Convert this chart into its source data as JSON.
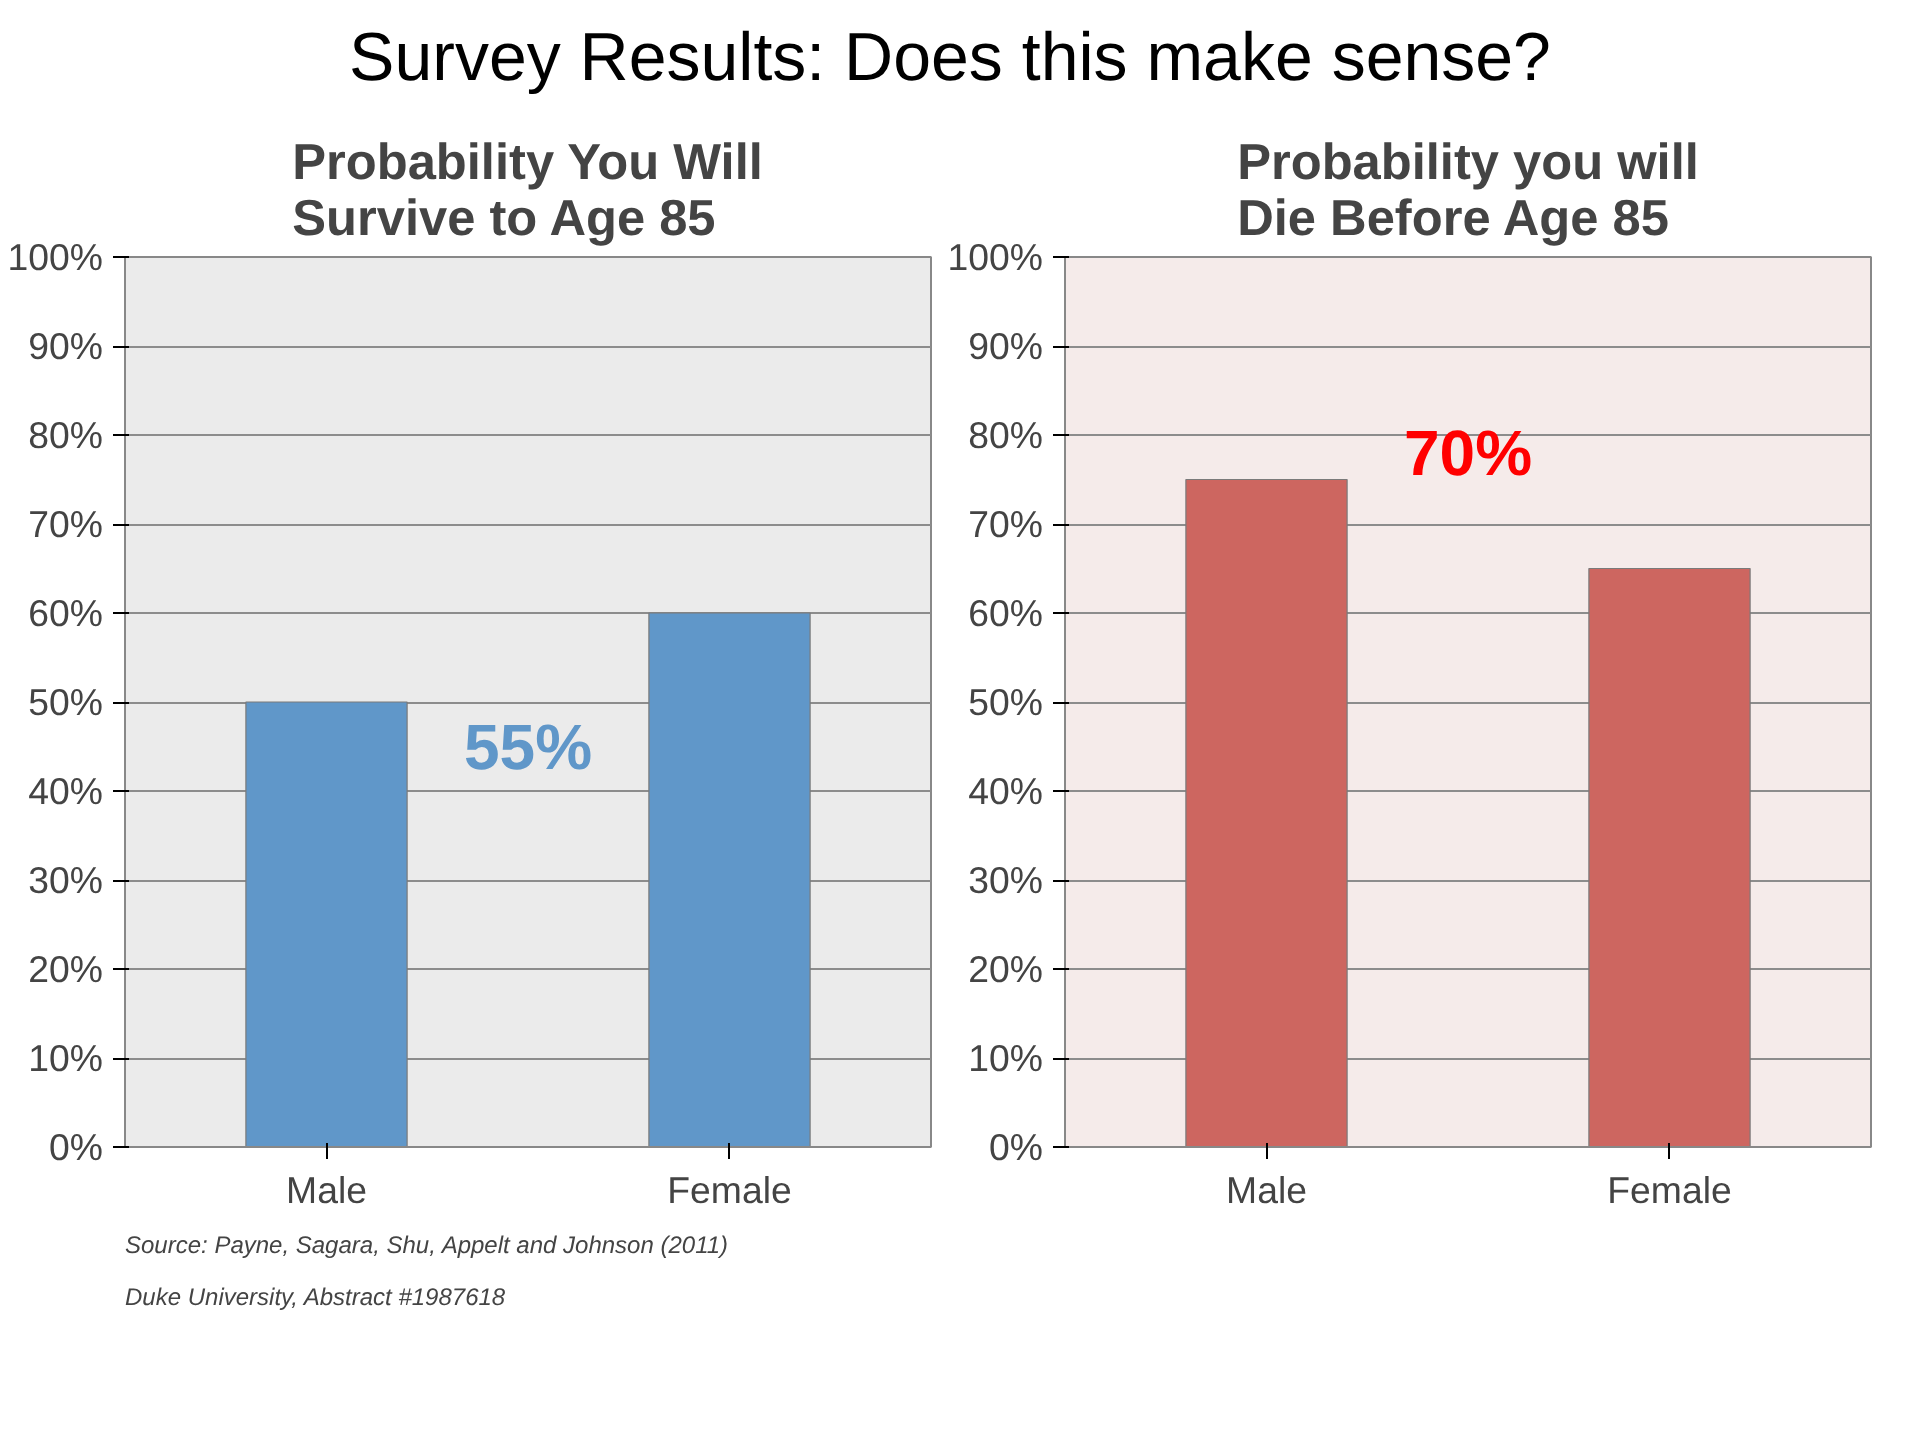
{
  "chart_data": [
    {
      "type": "bar",
      "title": "Survey Results: Does this make sense?",
      "subtitle": "Probability You Will\nSurvive to Age 85",
      "categories": [
        "Male",
        "Female"
      ],
      "series": [
        {
          "color": "#6097c9",
          "values": [
            50,
            60
          ]
        }
      ],
      "ylim": [
        0,
        100
      ],
      "yticks": [
        {
          "value": 0,
          "label": "0%"
        },
        {
          "value": 10,
          "label": "10%"
        },
        {
          "value": 20,
          "label": "20%"
        },
        {
          "value": 30,
          "label": "30%"
        },
        {
          "value": 40,
          "label": "40%"
        },
        {
          "value": 50,
          "label": "50%"
        },
        {
          "value": 60,
          "label": "60%"
        },
        {
          "value": 70,
          "label": "70%"
        },
        {
          "value": 80,
          "label": "80%"
        },
        {
          "value": 90,
          "label": "90%"
        },
        {
          "value": 100,
          "label": "100%"
        }
      ],
      "grid": "y",
      "annotations": [
        "55%",
        "Source: Payne, Sagara, Shu, Appelt and Johnson (2011)",
        "Duke University, Abstract #1987618"
      ]
    },
    {
      "type": "bar",
      "subtitle": "Probability you will\nDie Before Age 85",
      "categories": [
        "Male",
        "Female"
      ],
      "series": [
        {
          "color": "#cd6660",
          "values": [
            75,
            65
          ]
        }
      ],
      "ylim": [
        0,
        100
      ],
      "yticks": [
        {
          "value": 0,
          "label": "0%"
        },
        {
          "value": 10,
          "label": "10%"
        },
        {
          "value": 20,
          "label": "20%"
        },
        {
          "value": 30,
          "label": "30%"
        },
        {
          "value": 40,
          "label": "40%"
        },
        {
          "value": 50,
          "label": "50%"
        },
        {
          "value": 60,
          "label": "60%"
        },
        {
          "value": 70,
          "label": "70%"
        },
        {
          "value": 80,
          "label": "80%"
        },
        {
          "value": 90,
          "label": "90%"
        },
        {
          "value": 100,
          "label": "100%"
        }
      ],
      "grid": "y",
      "annotations": [
        "70%"
      ]
    }
  ]
}
